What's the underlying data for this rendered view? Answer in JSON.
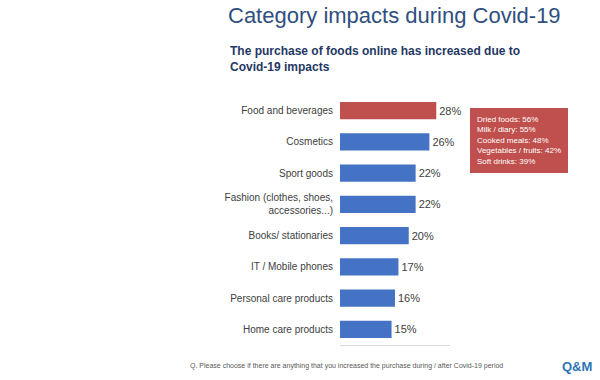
{
  "chart_data": {
    "type": "bar",
    "orientation": "horizontal",
    "title": "Category impacts during Covid-19",
    "subtitle": "The purchase of foods online has increased due to Covid-19 impacts",
    "categories": [
      "Food and beverages",
      "Cosmetics",
      "Sport goods",
      "Fashion (clothes, shoes,\naccessories...)",
      "Books/ stationaries",
      "IT / Mobile phones",
      "Personal care products",
      "Home care products"
    ],
    "values": [
      28,
      26,
      22,
      22,
      20,
      17,
      16,
      15
    ],
    "value_labels": [
      "28%",
      "26%",
      "22%",
      "22%",
      "20%",
      "17%",
      "16%",
      "15%"
    ],
    "data_labels": true,
    "colors": [
      "#c0504d",
      "#4472c4",
      "#4472c4",
      "#4472c4",
      "#4472c4",
      "#4472c4",
      "#4472c4",
      "#4472c4"
    ],
    "xlim": [
      0,
      32
    ],
    "xticks": [],
    "tick_labels": "y",
    "grid": false,
    "callout": [
      "Dried foods: 56%",
      "Milk / diary: 55%",
      "Cooked meals: 48%",
      "Vegetables / fruits: 42%",
      "Soft drinks: 39%"
    ],
    "note": "Q. Please choose if there are anything that you increased the purchase during / after Covid-19 period",
    "logo": "Q&M"
  }
}
